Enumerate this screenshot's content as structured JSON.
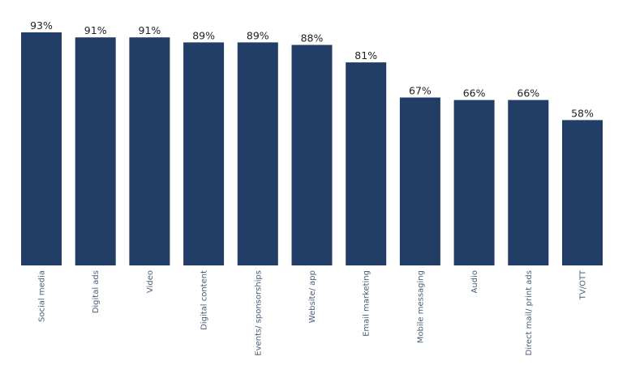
{
  "chart_data": {
    "type": "bar",
    "title": "",
    "xlabel": "",
    "ylabel": "",
    "ylim": [
      0,
      100
    ],
    "grid": false,
    "legend": "none",
    "bar_color": "#223d66",
    "categories": [
      "Social media",
      "Digital ads",
      "Video",
      "Digital content",
      "Events/ sponsorships",
      "Website/ app",
      "Email marketing",
      "Mobile messaging",
      "Audio",
      "Direct mail/ print ads",
      "TV/OTT"
    ],
    "values": [
      93,
      91,
      91,
      89,
      89,
      88,
      81,
      67,
      66,
      66,
      58
    ],
    "value_suffix": "%"
  }
}
